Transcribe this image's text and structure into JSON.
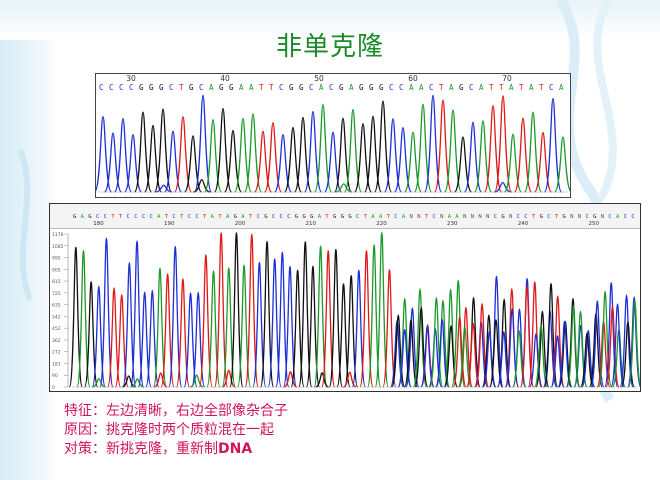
{
  "title": "非单克隆",
  "top_trace": {
    "positions": [
      "30",
      "40",
      "50",
      "60",
      "70"
    ],
    "bases": "CCCCGGGCTGCAGGAATTCGGCACGAGGGCCAACTAGCATTATATCA"
  },
  "bottom_trace": {
    "positions": [
      "180",
      "190",
      "200",
      "210",
      "220",
      "230",
      "240",
      "250"
    ],
    "bases": "GAGCCTTCCCCATCTCCTATAGATCGCCCGGGATGGGCTAATCANNTCNAANNNNCGNCCTGCTGNNCGNCACC",
    "y_ticks": [
      "1176",
      "1085",
      "995",
      "905",
      "815",
      "725",
      "635",
      "542",
      "452",
      "362",
      "272",
      "181",
      "90",
      "0"
    ]
  },
  "captions": {
    "feature": "特征：左边清晰，右边全部像杂合子",
    "cause": "原因：挑克隆时两个质粒混在一起",
    "solution_prefix": "对策：新挑克隆，重新制",
    "solution_suffix": "DNA"
  },
  "colors": {
    "A": "#1b9a2b",
    "C": "#1f2fd6",
    "G": "#111111",
    "T": "#e01818",
    "title": "#1a8a2a",
    "caption": "#d0145c"
  }
}
